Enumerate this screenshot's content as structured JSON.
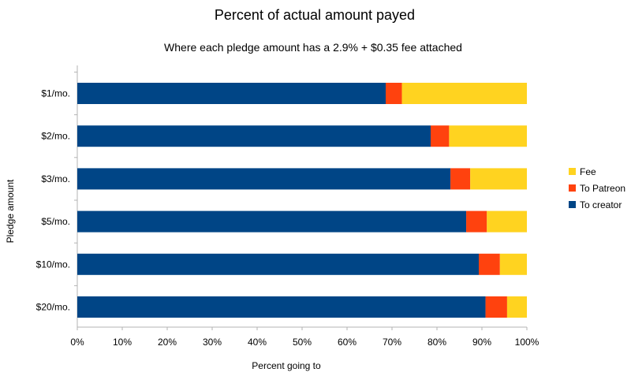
{
  "chart_data": {
    "type": "bar",
    "orientation": "horizontal",
    "stacked": true,
    "title": "Percent of actual amount payed",
    "subtitle": "Where each pledge amount has a 2.9% + $0.35 fee attached",
    "xlabel": "Percent going to",
    "ylabel": "Pledge amount",
    "xlim": [
      0,
      100
    ],
    "x_ticks": [
      "0%",
      "10%",
      "20%",
      "30%",
      "40%",
      "50%",
      "60%",
      "70%",
      "80%",
      "90%",
      "100%"
    ],
    "grid": false,
    "legend_position": "right",
    "legend_order": [
      "Fee",
      "To Patreon",
      "To creator"
    ],
    "categories": [
      "$1/mo.",
      "$2/mo.",
      "$3/mo.",
      "$5/mo.",
      "$10/mo.",
      "$20/mo."
    ],
    "series": [
      {
        "name": "To creator",
        "color": "#004586",
        "values": [
          68.6,
          78.6,
          83.0,
          86.5,
          89.3,
          90.8
        ]
      },
      {
        "name": "To Patreon",
        "color": "#ff420e",
        "values": [
          3.6,
          4.1,
          4.4,
          4.6,
          4.7,
          4.8
        ]
      },
      {
        "name": "Fee",
        "color": "#ffd320",
        "values": [
          27.8,
          17.3,
          12.6,
          8.9,
          6.0,
          4.4
        ]
      }
    ]
  }
}
